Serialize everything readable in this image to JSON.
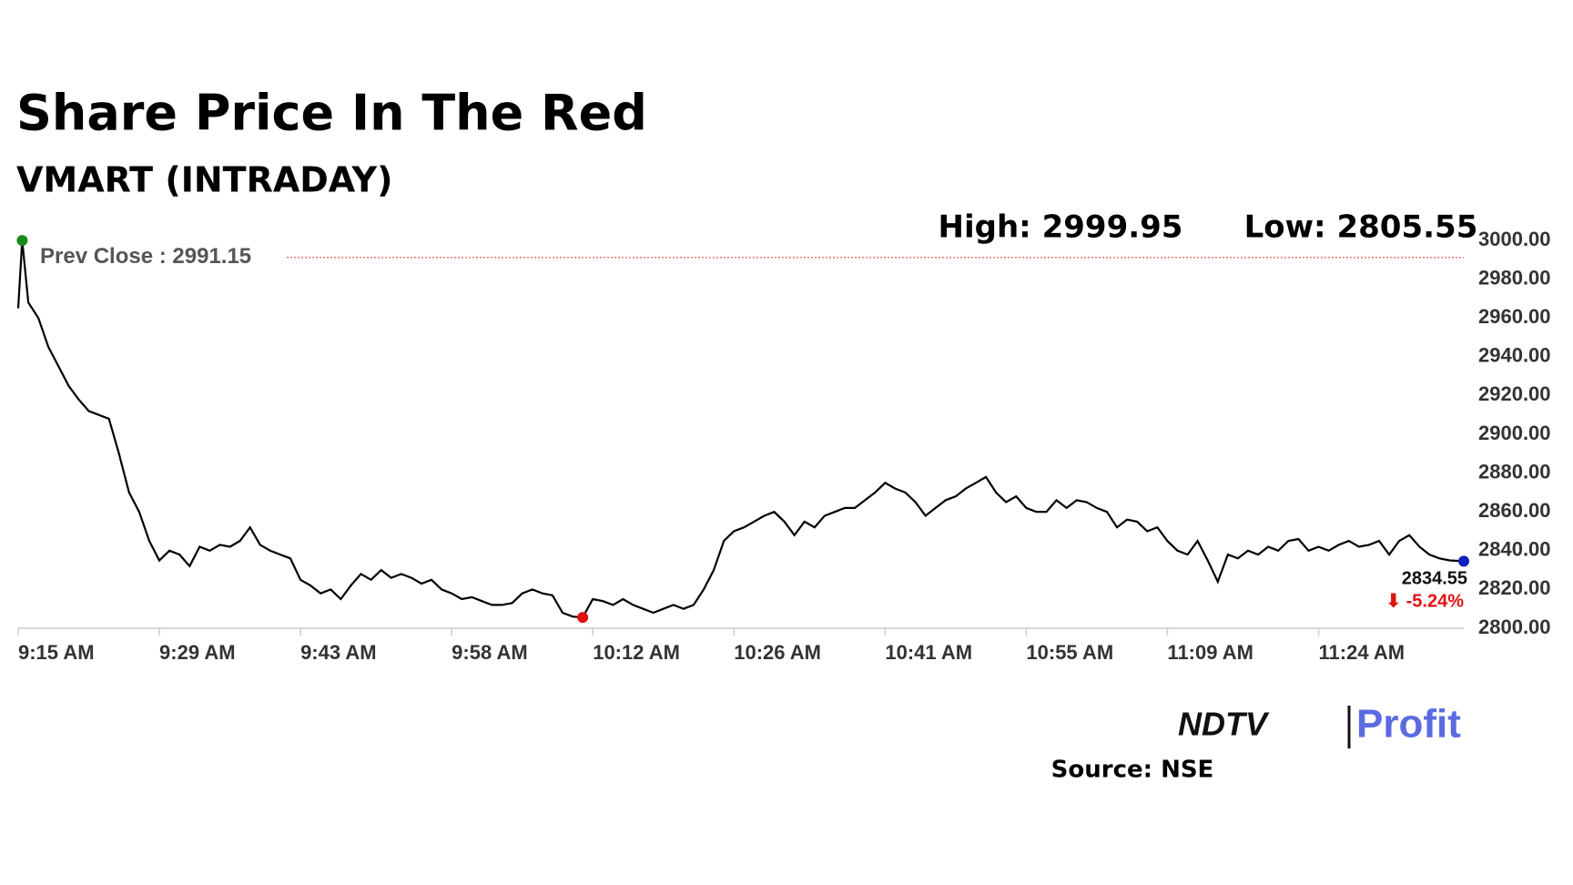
{
  "chart_data": {
    "type": "line",
    "title": "Share Price In The Red",
    "subtitle": "VMART (INTRADAY)",
    "high_text": "High: 2999.95",
    "low_text": "Low: 2805.55",
    "prev_close": {
      "value": 2991.15,
      "label": "Prev Close : 2991.15"
    },
    "last": {
      "value": 2834.55,
      "label": "2834.55"
    },
    "change_label": "⬇ -5.24%",
    "xlim": [
      0,
      143.4
    ],
    "xticks": [
      {
        "value": 0,
        "label": "9:15 AM"
      },
      {
        "value": 14,
        "label": "9:29 AM"
      },
      {
        "value": 28,
        "label": "9:43 AM"
      },
      {
        "value": 43,
        "label": "9:58 AM"
      },
      {
        "value": 57,
        "label": "10:12 AM"
      },
      {
        "value": 71,
        "label": "10:26 AM"
      },
      {
        "value": 86,
        "label": "10:41 AM"
      },
      {
        "value": 100,
        "label": "10:55 AM"
      },
      {
        "value": 114,
        "label": "11:09 AM"
      },
      {
        "value": 129,
        "label": "11:24 AM"
      }
    ],
    "ylim": [
      2800,
      3000
    ],
    "yticks": [
      {
        "value": 2800,
        "label": "2800.00"
      },
      {
        "value": 2820,
        "label": "2820.00"
      },
      {
        "value": 2840,
        "label": "2840.00"
      },
      {
        "value": 2860,
        "label": "2860.00"
      },
      {
        "value": 2880,
        "label": "2880.00"
      },
      {
        "value": 2900,
        "label": "2900.00"
      },
      {
        "value": 2920,
        "label": "2920.00"
      },
      {
        "value": 2940,
        "label": "2940.00"
      },
      {
        "value": 2960,
        "label": "2960.00"
      },
      {
        "value": 2980,
        "label": "2980.00"
      },
      {
        "value": 3000,
        "label": "3000.00"
      }
    ],
    "series": [
      {
        "color": "#000000",
        "x": [
          0,
          0.4,
          1,
          2,
          3,
          4,
          5,
          6,
          7,
          8,
          9,
          10,
          11,
          12,
          13,
          14,
          15,
          16,
          17,
          18,
          19,
          20,
          21,
          22,
          23,
          24,
          25,
          26,
          27,
          28,
          29,
          30,
          31,
          32,
          33,
          34,
          35,
          36,
          37,
          38,
          39,
          40,
          41,
          42,
          43,
          44,
          45,
          46,
          47,
          48,
          49,
          50,
          51,
          52,
          53,
          54,
          55,
          56,
          57,
          58,
          59,
          60,
          61,
          62,
          63,
          64,
          65,
          66,
          67,
          68,
          69,
          70,
          71,
          72,
          73,
          74,
          75,
          76,
          77,
          78,
          79,
          80,
          81,
          82,
          83,
          84,
          85,
          86,
          87,
          88,
          89,
          90,
          91,
          92,
          93,
          94,
          95,
          96,
          97,
          98,
          99,
          100,
          101,
          102,
          103,
          104,
          105,
          106,
          107,
          108,
          109,
          110,
          111,
          112,
          113,
          114,
          115,
          116,
          117,
          118,
          119,
          120,
          121,
          122,
          123,
          124,
          125,
          126,
          127,
          128,
          129,
          130,
          131,
          132,
          133,
          134,
          135,
          136,
          137,
          138,
          139,
          140,
          141,
          142,
          143.4
        ],
        "values": [
          2965,
          2999.95,
          2968,
          2960,
          2945,
          2935,
          2925,
          2918,
          2912,
          2910,
          2908,
          2890,
          2870,
          2860,
          2845,
          2835,
          2840,
          2838,
          2832,
          2842,
          2840,
          2843,
          2842,
          2845,
          2852,
          2843,
          2840,
          2838,
          2836,
          2825,
          2822,
          2818,
          2820,
          2815,
          2822,
          2828,
          2825,
          2830,
          2826,
          2828,
          2826,
          2823,
          2825,
          2820,
          2818,
          2815,
          2816,
          2814,
          2812,
          2812,
          2813,
          2818,
          2820,
          2818,
          2817,
          2808,
          2806,
          2805.55,
          2815,
          2814,
          2812,
          2815,
          2812,
          2810,
          2808,
          2810,
          2812,
          2810,
          2812,
          2820,
          2830,
          2845,
          2850,
          2852,
          2855,
          2858,
          2860,
          2855,
          2848,
          2855,
          2852,
          2858,
          2860,
          2862,
          2862,
          2866,
          2870,
          2875,
          2872,
          2870,
          2865,
          2858,
          2862,
          2866,
          2868,
          2872,
          2875,
          2878,
          2870,
          2865,
          2868,
          2862,
          2860,
          2860,
          2866,
          2862,
          2866,
          2865,
          2862,
          2860,
          2852,
          2856,
          2855,
          2850,
          2852,
          2845,
          2840,
          2838,
          2845,
          2835,
          2824,
          2838,
          2836,
          2840,
          2838,
          2842,
          2840,
          2845,
          2846,
          2840,
          2842,
          2840,
          2843,
          2845,
          2842,
          2843,
          2845,
          2838,
          2845,
          2848,
          2842,
          2838,
          2836,
          2835,
          2834.55
        ]
      }
    ],
    "source": "Source: NSE",
    "logo": {
      "left": "NDTV",
      "right": "Profit"
    }
  }
}
